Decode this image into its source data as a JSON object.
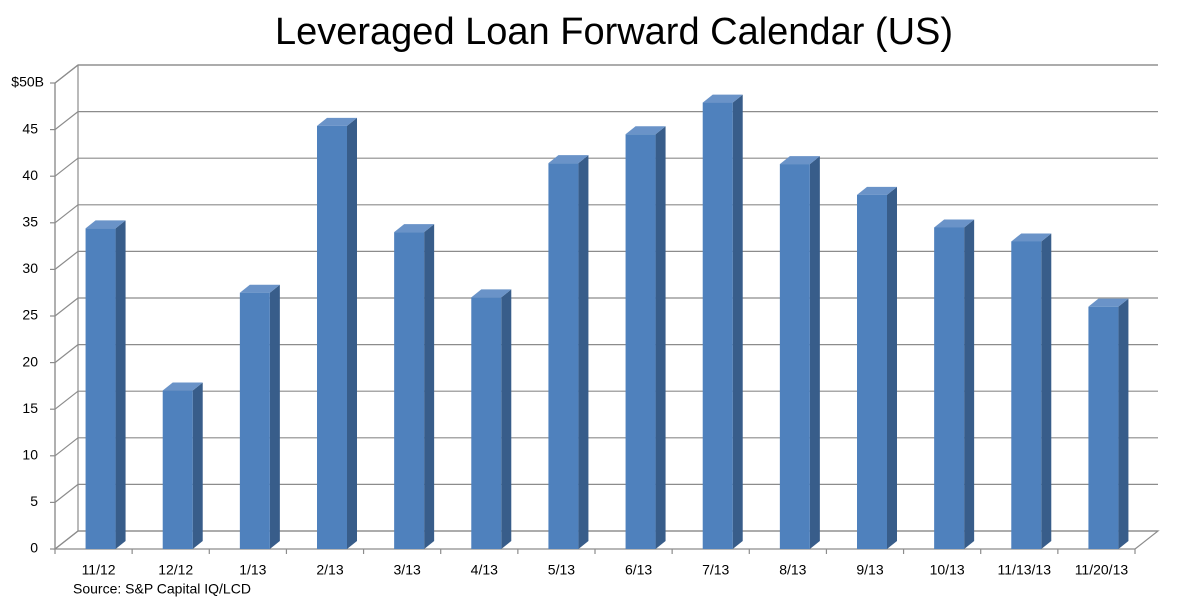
{
  "chart_data": {
    "type": "bar3d",
    "title": "Leveraged Loan Forward Calendar (US)",
    "source": "Source: S&P Capital IQ/LCD",
    "categories": [
      "11/12",
      "12/12",
      "1/13",
      "2/13",
      "3/13",
      "4/13",
      "5/13",
      "6/13",
      "7/13",
      "8/13",
      "9/13",
      "10/13",
      "11/13/13",
      "11/20/13"
    ],
    "values": [
      34.4,
      17,
      27.5,
      45.4,
      34,
      27,
      41.4,
      44.5,
      47.9,
      41.3,
      38,
      34.5,
      33,
      26
    ],
    "color": "#4f81bd",
    "ylim": [
      0,
      50
    ],
    "yticks": [
      0,
      5,
      10,
      15,
      20,
      25,
      30,
      35,
      40,
      45,
      {
        "value": 50,
        "label": "$50B"
      }
    ],
    "grid": true
  }
}
